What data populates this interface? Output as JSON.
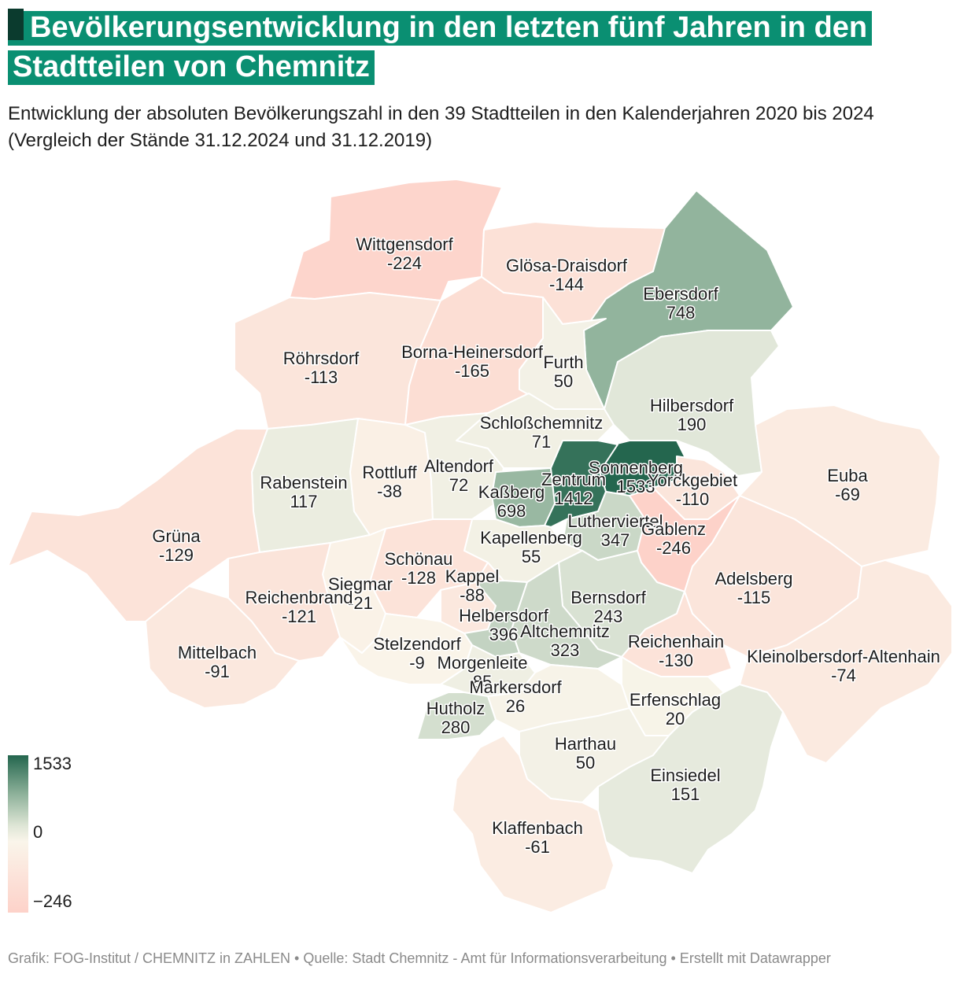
{
  "title": "Bevölkerungsentwicklung in den letzten fünf Jahren in den Stadtteilen von Chemnitz",
  "subtitle": "Entwicklung der absoluten Bevölkerungszahl in den 39 Stadtteilen in den Kalenderjahren 2020 bis 2024 (Vergleich der Stände 31.12.2024 und 31.12.2019)",
  "legend": {
    "max": "1533",
    "mid": "0",
    "min": "−246"
  },
  "colors": {
    "accent": "#0a8f72",
    "strong_positive": "#24664e",
    "neutral": "#faf5ea",
    "negative": "#fdd2c9"
  },
  "districts": [
    {
      "name": "Wittgensdorf",
      "value": "-224"
    },
    {
      "name": "Glösa-Draisdorf",
      "value": "-144"
    },
    {
      "name": "Ebersdorf",
      "value": "748"
    },
    {
      "name": "Röhrsdorf",
      "value": "-113"
    },
    {
      "name": "Borna-Heinersdorf",
      "value": "-165"
    },
    {
      "name": "Furth",
      "value": "50"
    },
    {
      "name": "Hilbersdorf",
      "value": "190"
    },
    {
      "name": "Schloßchemnitz",
      "value": "71"
    },
    {
      "name": "Sonnenberg",
      "value": "1533"
    },
    {
      "name": "Yorckgebiet",
      "value": "-110"
    },
    {
      "name": "Euba",
      "value": "-69"
    },
    {
      "name": "Rabenstein",
      "value": "117"
    },
    {
      "name": "Rottluff",
      "value": "-38"
    },
    {
      "name": "Altendorf",
      "value": "72"
    },
    {
      "name": "Kaßberg",
      "value": "698"
    },
    {
      "name": "Zentrum",
      "value": "1412"
    },
    {
      "name": "Lutherviertel",
      "value": "347"
    },
    {
      "name": "Gablenz",
      "value": "-246"
    },
    {
      "name": "Grüna",
      "value": "-129"
    },
    {
      "name": "Kapellenberg",
      "value": "55"
    },
    {
      "name": "Schönau",
      "value": "-128"
    },
    {
      "name": "Adelsberg",
      "value": "-115"
    },
    {
      "name": "Siegmar",
      "value": "-21"
    },
    {
      "name": "Kappel",
      "value": "-88"
    },
    {
      "name": "Reichenbrand",
      "value": "-121"
    },
    {
      "name": "Bernsdorf",
      "value": "243"
    },
    {
      "name": "Helbersdorf",
      "value": "396"
    },
    {
      "name": "Altchemnitz",
      "value": "323"
    },
    {
      "name": "Reichenhain",
      "value": "-130"
    },
    {
      "name": "Mittelbach",
      "value": "-91"
    },
    {
      "name": "Stelzendorf",
      "value": "-9"
    },
    {
      "name": "Morgenleite",
      "value": "85"
    },
    {
      "name": "Kleinolbersdorf-Altenhain",
      "value": "-74"
    },
    {
      "name": "Markersdorf",
      "value": "26"
    },
    {
      "name": "Erfenschlag",
      "value": "20"
    },
    {
      "name": "Hutholz",
      "value": "280"
    },
    {
      "name": "Harthau",
      "value": "50"
    },
    {
      "name": "Einsiedel",
      "value": "151"
    },
    {
      "name": "Klaffenbach",
      "value": "-61"
    }
  ],
  "footer": "Grafik: FOG-Institut / CHEMNITZ in ZAHLEN • Quelle: Stadt Chemnitz - Amt für Informationsverarbeitung • Erstellt mit Datawrapper"
}
